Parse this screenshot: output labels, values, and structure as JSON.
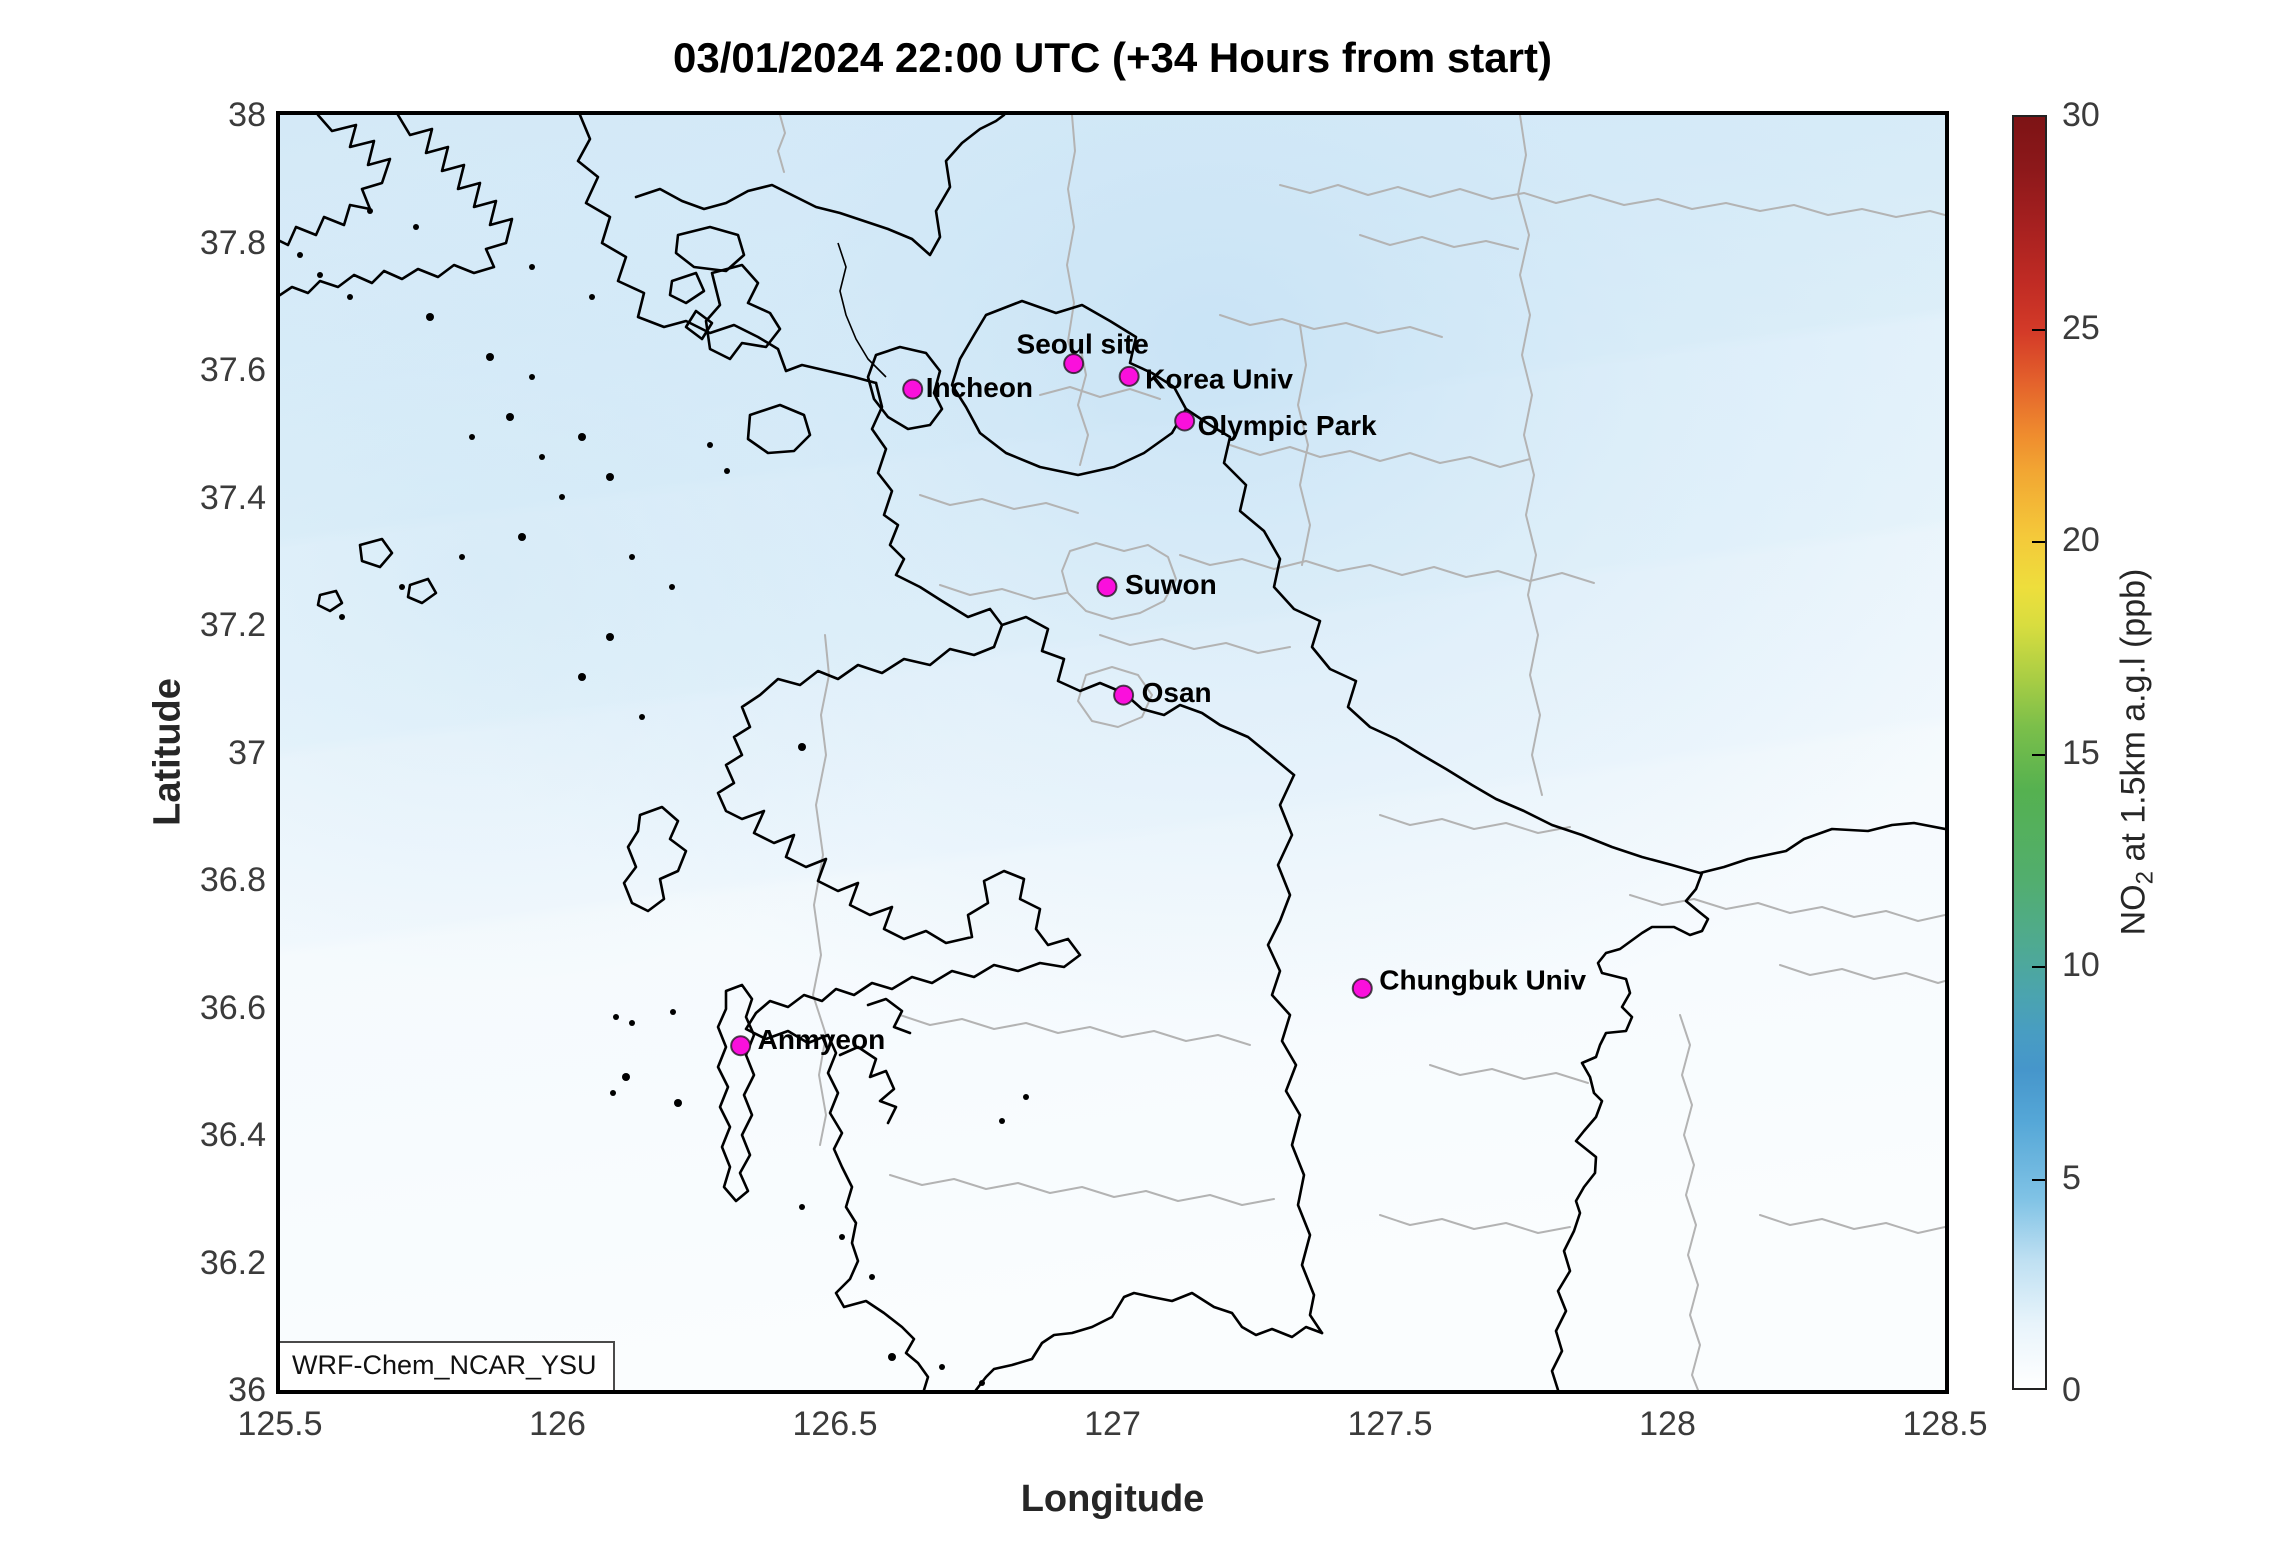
{
  "title": "03/01/2024 22:00 UTC (+34 Hours from start)",
  "axes": {
    "xlabel": "Longitude",
    "ylabel": "Latitude",
    "xticks": [
      {
        "value": 125.5,
        "label": "125.5"
      },
      {
        "value": 126,
        "label": "126"
      },
      {
        "value": 126.5,
        "label": "126.5"
      },
      {
        "value": 127,
        "label": "127"
      },
      {
        "value": 127.5,
        "label": "127.5"
      },
      {
        "value": 128,
        "label": "128"
      },
      {
        "value": 128.5,
        "label": "128.5"
      }
    ],
    "yticks": [
      {
        "value": 36,
        "label": "36"
      },
      {
        "value": 36.2,
        "label": "36.2"
      },
      {
        "value": 36.4,
        "label": "36.4"
      },
      {
        "value": 36.6,
        "label": "36.6"
      },
      {
        "value": 36.8,
        "label": "36.8"
      },
      {
        "value": 37,
        "label": "37"
      },
      {
        "value": 37.2,
        "label": "37.2"
      },
      {
        "value": 37.4,
        "label": "37.4"
      },
      {
        "value": 37.6,
        "label": "37.6"
      },
      {
        "value": 37.8,
        "label": "37.8"
      },
      {
        "value": 38,
        "label": "38"
      }
    ]
  },
  "colorbar": {
    "label_prefix": "NO",
    "label_sub": "2",
    "label_suffix": " at 1.5km a.g.l (ppb)",
    "min": 0,
    "max": 30,
    "ticks": [
      {
        "value": 0,
        "label": "0"
      },
      {
        "value": 5,
        "label": "5"
      },
      {
        "value": 10,
        "label": "10"
      },
      {
        "value": 15,
        "label": "15"
      },
      {
        "value": 20,
        "label": "20"
      },
      {
        "value": 25,
        "label": "25"
      },
      {
        "value": 30,
        "label": "30"
      }
    ]
  },
  "watermark": "WRF-Chem_NCAR_YSU",
  "chart_data": {
    "type": "map_contour",
    "title": "03/01/2024 22:00 UTC (+34 Hours from start)",
    "valid_time": "03/01/2024 22:00 UTC",
    "forecast_offset": "+34 Hours from start",
    "variable": "NO2 at 1.5km a.g.l",
    "units": "ppb",
    "model_label": "WRF-Chem_NCAR_YSU",
    "xlabel": "Longitude",
    "ylabel": "Latitude",
    "lon_range": [
      125.5,
      128.5
    ],
    "lat_range": [
      36,
      38
    ],
    "value_range": [
      0,
      30
    ],
    "marker_color": "#fa10dc",
    "field_summary": "Low background NO2: ~2-4 ppb pale-blue shading over the northern half (Seoul/Incheon/Gyeonggi and west sea), decreasing to <1 ppb (near-white) toward the south and southeast; no values above ~4 ppb so the map stays in the white-blue end of the 0-30 ppb scale",
    "colormap_stops": [
      {
        "value": 0,
        "color": "#ffffff"
      },
      {
        "value": 2,
        "color": "#e3f2fa"
      },
      {
        "value": 5,
        "color": "#7fc2e5"
      },
      {
        "value": 7,
        "color": "#4a9fd4"
      },
      {
        "value": 9,
        "color": "#4696c8"
      },
      {
        "value": 10,
        "color": "#4aa0bc"
      },
      {
        "value": 12,
        "color": "#4fac89"
      },
      {
        "value": 15,
        "color": "#55b150"
      },
      {
        "value": 17,
        "color": "#abce44"
      },
      {
        "value": 19,
        "color": "#e8e43d"
      },
      {
        "value": 20,
        "color": "#f4c93a"
      },
      {
        "value": 22,
        "color": "#f19130"
      },
      {
        "value": 24,
        "color": "#e25a2b"
      },
      {
        "value": 25,
        "color": "#d23a28"
      },
      {
        "value": 27,
        "color": "#b52622"
      },
      {
        "value": 30,
        "color": "#7d1315"
      }
    ],
    "stations": [
      {
        "name": "Seoul site",
        "lon": 126.93,
        "lat": 37.61,
        "label_offset": [
          9,
          -20
        ],
        "anchor": "middle"
      },
      {
        "name": "Korea Univ",
        "lon": 127.03,
        "lat": 37.59,
        "label_offset": [
          16,
          2
        ],
        "anchor": "start"
      },
      {
        "name": "Incheon",
        "lon": 126.64,
        "lat": 37.57,
        "label_offset": [
          13,
          -2
        ],
        "anchor": "start"
      },
      {
        "name": "Olympic Park",
        "lon": 127.13,
        "lat": 37.52,
        "label_offset": [
          13,
          4
        ],
        "anchor": "start"
      },
      {
        "name": "Suwon",
        "lon": 126.99,
        "lat": 37.26,
        "label_offset": [
          18,
          -3
        ],
        "anchor": "start"
      },
      {
        "name": "Osan",
        "lon": 127.02,
        "lat": 37.09,
        "label_offset": [
          18,
          -3
        ],
        "anchor": "start"
      },
      {
        "name": "Chungbuk Univ",
        "lon": 127.45,
        "lat": 36.63,
        "label_offset": [
          17,
          -9
        ],
        "anchor": "start"
      },
      {
        "name": "Anmyeon",
        "lon": 126.33,
        "lat": 36.54,
        "label_offset": [
          17,
          -7
        ],
        "anchor": "start"
      }
    ]
  }
}
